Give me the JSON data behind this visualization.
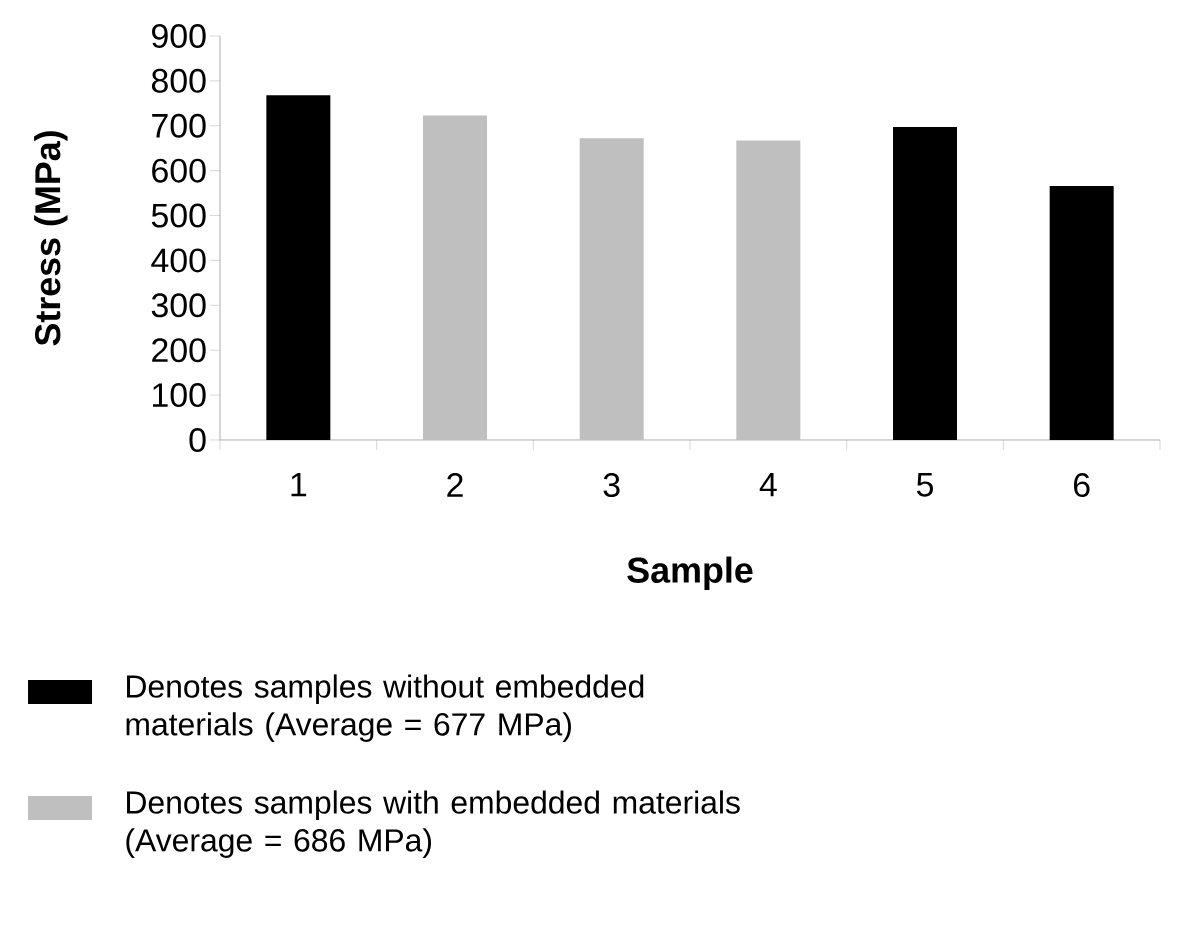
{
  "chart_data": {
    "type": "bar",
    "xlabel": "Sample",
    "ylabel": "Stress (MPa)",
    "categories": [
      "1",
      "2",
      "3",
      "4",
      "5",
      "6"
    ],
    "series": [
      {
        "name": "Denotes samples without embedded materials (Average = 677 MPa)",
        "color": "#000000",
        "values": [
          768,
          null,
          null,
          null,
          697,
          566
        ]
      },
      {
        "name": "Denotes samples with embedded materials (Average = 686 MPa)",
        "color": "#bfbfbf",
        "values": [
          null,
          723,
          672,
          667,
          null,
          null
        ]
      }
    ],
    "ylim": [
      0,
      900
    ],
    "yticks": [
      0,
      100,
      200,
      300,
      400,
      500,
      600,
      700,
      800,
      900
    ],
    "grid": false,
    "legend": "bottom"
  }
}
